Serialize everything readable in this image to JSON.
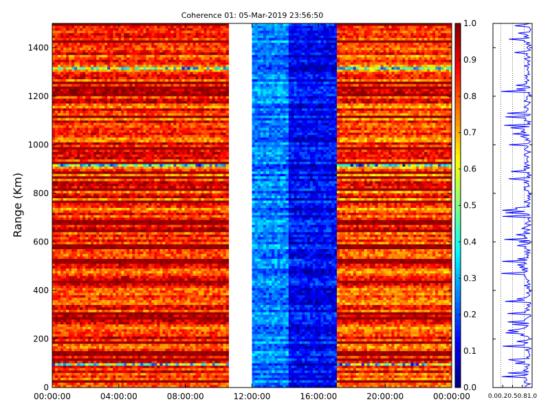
{
  "chart_data": [
    {
      "type": "heatmap",
      "title": "Coherence 01: 05-Mar-2019 23:56:50",
      "xlabel": "",
      "ylabel": "Range (Km)",
      "x_ticks": [
        "00:00:00",
        "04:00:00",
        "08:00:00",
        "12:00:00",
        "16:00:00",
        "20:00:00",
        "00:00:00"
      ],
      "x_tick_hours": [
        0,
        4,
        8,
        12,
        16,
        20,
        24
      ],
      "xlim_hours": [
        0,
        24
      ],
      "y_ticks": [
        0,
        200,
        400,
        600,
        800,
        1000,
        1200,
        1400
      ],
      "ylim": [
        0,
        1500
      ],
      "colorscale": "jet",
      "clim": [
        0.0,
        1.0
      ],
      "colorbar_ticks": [
        "0.0",
        "0.1",
        "0.2",
        "0.3",
        "0.4",
        "0.5",
        "0.6",
        "0.7",
        "0.8",
        "0.9",
        "1.0"
      ],
      "segments": [
        {
          "t_start_h": 0.0,
          "t_end_h": 10.6,
          "level": "high",
          "approx_mean": 0.85
        },
        {
          "t_start_h": 10.6,
          "t_end_h": 12.0,
          "level": "no data",
          "approx_mean": null
        },
        {
          "t_start_h": 12.0,
          "t_end_h": 14.2,
          "level": "low",
          "approx_mean": 0.25
        },
        {
          "t_start_h": 14.2,
          "t_end_h": 17.1,
          "level": "very low",
          "approx_mean": 0.12
        },
        {
          "t_start_h": 17.1,
          "t_end_h": 24.0,
          "level": "high",
          "approx_mean": 0.82
        }
      ]
    },
    {
      "type": "line",
      "title": "",
      "xlabel": "",
      "ylabel": "",
      "x_ticks": [
        "0.0",
        "0.2",
        "0.5",
        "0.8",
        "1.0"
      ],
      "xlim": [
        0.0,
        1.0
      ],
      "ylim": [
        0,
        1500
      ],
      "description_values": "coherence profile vs range, mostly between 0.7 and 1.0 with dips toward 0.2"
    }
  ],
  "colors": {
    "line": "#0000ff",
    "axis": "#000000",
    "gap": "#ffffff"
  }
}
